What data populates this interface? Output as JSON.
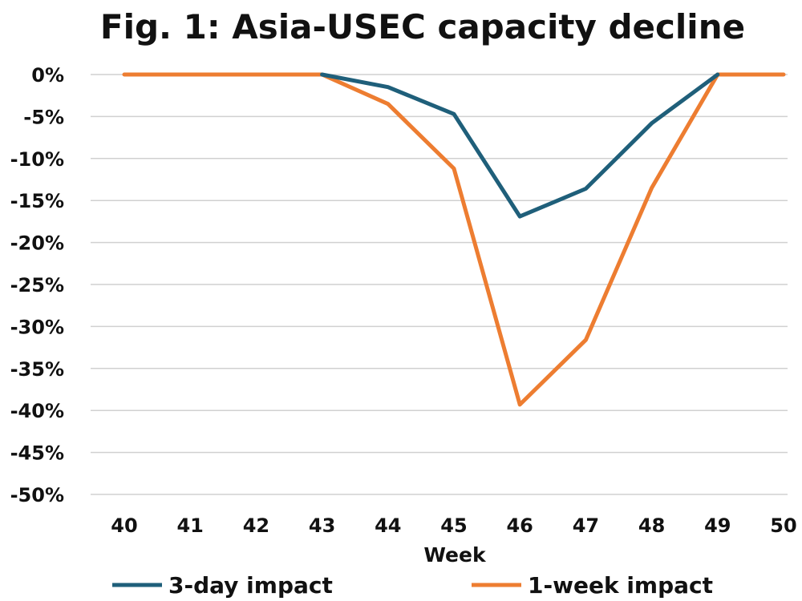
{
  "chart_data": {
    "type": "line",
    "title": "Fig. 1: Asia-USEC capacity decline",
    "xlabel": "Week",
    "ylabel": "",
    "x": [
      40,
      41,
      42,
      43,
      44,
      45,
      46,
      47,
      48,
      49,
      50
    ],
    "xlim": [
      40,
      50
    ],
    "ylim": [
      -50,
      0
    ],
    "yticks": [
      0,
      -5,
      -10,
      -15,
      -20,
      -25,
      -30,
      -35,
      -40,
      -45,
      -50
    ],
    "ytick_labels": [
      "0%",
      "-5%",
      "-10%",
      "-15%",
      "-20%",
      "-25%",
      "-30%",
      "-35%",
      "-40%",
      "-45%",
      "-50%"
    ],
    "xtick_labels": [
      "40",
      "41",
      "42",
      "43",
      "44",
      "45",
      "46",
      "47",
      "48",
      "49",
      "50"
    ],
    "grid": true,
    "legend_position": "bottom",
    "series": [
      {
        "name": "3-day impact",
        "color": "#1f5f7a",
        "x": [
          43,
          44,
          45,
          46,
          47,
          48,
          49
        ],
        "values": [
          0,
          -1.5,
          -4.7,
          -16.9,
          -13.6,
          -5.8,
          0
        ]
      },
      {
        "name": "1-week impact",
        "color": "#ed7d31",
        "x": [
          40,
          41,
          42,
          43,
          44,
          45,
          46,
          47,
          48,
          49,
          50
        ],
        "values": [
          0,
          0,
          0,
          0,
          -3.5,
          -11.2,
          -39.3,
          -31.6,
          -13.5,
          0,
          0
        ]
      }
    ]
  }
}
